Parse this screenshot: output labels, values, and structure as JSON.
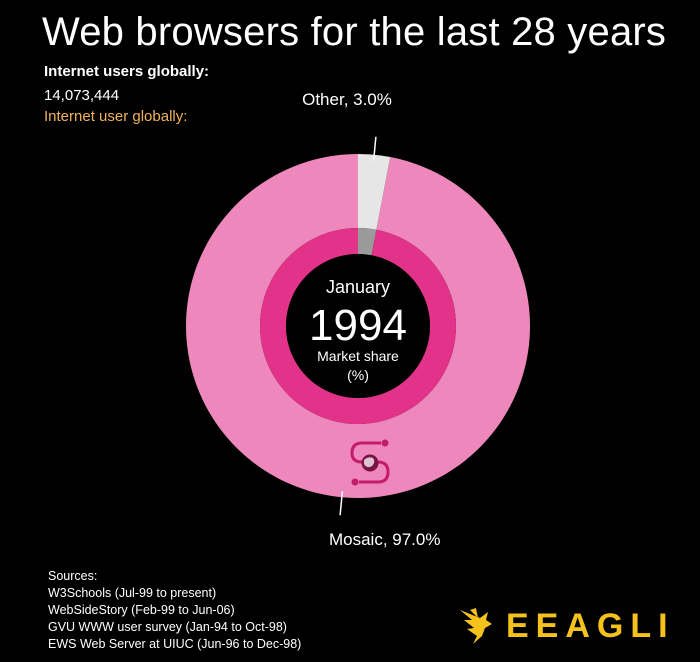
{
  "header": {
    "title": "Web browsers for the last 28 years",
    "users_label": "Internet users globally:",
    "users_value": "14,073,444",
    "users_label_secondary": "Internet user globally:"
  },
  "center": {
    "month": "January",
    "year": "1994",
    "caption_line1": "Market share",
    "caption_line2": "(%)"
  },
  "chart_data": {
    "type": "pie",
    "variant": "donut",
    "date": "January 1994",
    "slices": [
      {
        "name": "Mosaic",
        "value": 97.0,
        "label": "Mosaic, 97.0%",
        "color": "#ee87bb",
        "inner_color": "#e2328a"
      },
      {
        "name": "Other",
        "value": 3.0,
        "label": "Other, 3.0%",
        "color": "#e6e6e6",
        "inner_color": "#9a9a9a"
      }
    ]
  },
  "sources": {
    "heading": "Sources:",
    "items": [
      "W3Schools (Jul-99 to present)",
      "WebSideStory (Feb-99 to Jun-06)",
      "GVU WWW user survey (Jan-94 to Oct-98)",
      "EWS Web Server at UIUC (Jun-96 to Dec-98)"
    ]
  },
  "brand": {
    "name": "EEAGLI",
    "color": "#f5c21b"
  },
  "icons": {
    "browser_logo": "mosaic-logo-icon",
    "brand_logo": "eagle-icon"
  }
}
